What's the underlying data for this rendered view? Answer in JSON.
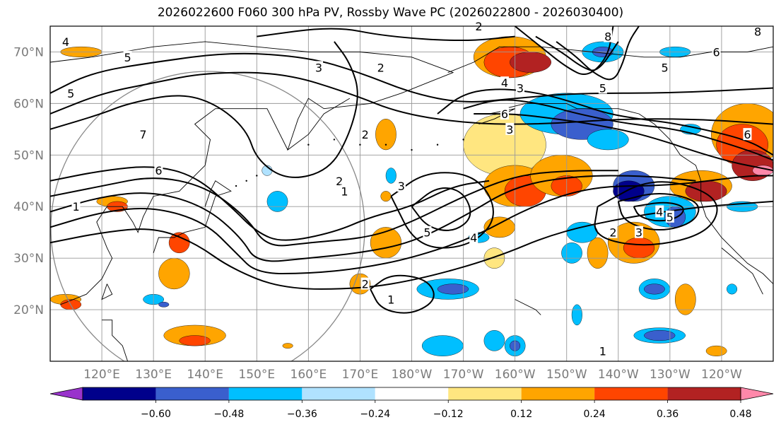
{
  "chart_data": {
    "type": "map-contour",
    "title": "2026022600 F060 300 hPa PV, Rossby Wave PC (2026022800 - 2026030400)",
    "lon_range": [
      110,
      250
    ],
    "lat_range": [
      10,
      75
    ],
    "lat_ticks": [
      {
        "value": 20,
        "label": "20°N"
      },
      {
        "value": 30,
        "label": "30°N"
      },
      {
        "value": 40,
        "label": "40°N"
      },
      {
        "value": 50,
        "label": "50°N"
      },
      {
        "value": 60,
        "label": "60°N"
      },
      {
        "value": 70,
        "label": "70°N"
      }
    ],
    "lon_ticks": [
      {
        "value": 120,
        "label": "120°E"
      },
      {
        "value": 130,
        "label": "130°E"
      },
      {
        "value": 140,
        "label": "140°E"
      },
      {
        "value": 150,
        "label": "150°E"
      },
      {
        "value": 160,
        "label": "160°E"
      },
      {
        "value": 170,
        "label": "170°E"
      },
      {
        "value": 180,
        "label": "180°W"
      },
      {
        "value": 190,
        "label": "170°W"
      },
      {
        "value": 200,
        "label": "160°W"
      },
      {
        "value": 210,
        "label": "150°W"
      },
      {
        "value": 220,
        "label": "140°W"
      },
      {
        "value": 230,
        "label": "130°W"
      },
      {
        "value": 240,
        "label": "120°W"
      }
    ],
    "colorbar": {
      "levels": [
        -0.6,
        -0.48,
        -0.36,
        -0.24,
        -0.12,
        0.12,
        0.24,
        0.36,
        0.48,
        0.6
      ],
      "labels": [
        "−0.60",
        "−0.48",
        "−0.36",
        "−0.24",
        "−0.12",
        "0.12",
        "0.24",
        "0.36",
        "0.48",
        "0.60"
      ],
      "colors": [
        "#9933cc",
        "#00008b",
        "#3a5fcd",
        "#00bfff",
        "#b0e2ff",
        "#ffffff",
        "#ffe680",
        "#ffa500",
        "#ff4500",
        "#b22222",
        "#ff88aa"
      ]
    },
    "pv_contour_labels": [
      {
        "text": "4",
        "lon": 113,
        "lat": 72
      },
      {
        "text": "5",
        "lon": 125,
        "lat": 69
      },
      {
        "text": "5",
        "lon": 114,
        "lat": 62
      },
      {
        "text": "7",
        "lon": 128,
        "lat": 54
      },
      {
        "text": "6",
        "lon": 131,
        "lat": 47
      },
      {
        "text": "1",
        "lon": 115,
        "lat": 40
      },
      {
        "text": "3",
        "lon": 162,
        "lat": 67
      },
      {
        "text": "2",
        "lon": 174,
        "lat": 67
      },
      {
        "text": "2",
        "lon": 171,
        "lat": 54
      },
      {
        "text": "2",
        "lon": 166,
        "lat": 45
      },
      {
        "text": "1",
        "lon": 167,
        "lat": 43
      },
      {
        "text": "3",
        "lon": 178,
        "lat": 44
      },
      {
        "text": "5",
        "lon": 183,
        "lat": 35
      },
      {
        "text": "4",
        "lon": 192,
        "lat": 34
      },
      {
        "text": "6",
        "lon": 198,
        "lat": 58
      },
      {
        "text": "3",
        "lon": 199,
        "lat": 55
      },
      {
        "text": "4",
        "lon": 198,
        "lat": 64
      },
      {
        "text": "3",
        "lon": 201,
        "lat": 63
      },
      {
        "text": "2",
        "lon": 193,
        "lat": 75
      },
      {
        "text": "8",
        "lon": 218,
        "lat": 73
      },
      {
        "text": "5",
        "lon": 229,
        "lat": 67
      },
      {
        "text": "5",
        "lon": 217,
        "lat": 63
      },
      {
        "text": "6",
        "lon": 239,
        "lat": 70
      },
      {
        "text": "8",
        "lon": 247,
        "lat": 74
      },
      {
        "text": "6",
        "lon": 245,
        "lat": 54
      },
      {
        "text": "4",
        "lon": 228,
        "lat": 39
      },
      {
        "text": "5",
        "lon": 230,
        "lat": 38
      },
      {
        "text": "3",
        "lon": 224,
        "lat": 35
      },
      {
        "text": "2",
        "lon": 219,
        "lat": 35
      },
      {
        "text": "2",
        "lon": 171,
        "lat": 25
      },
      {
        "text": "1",
        "lon": 176,
        "lat": 22
      },
      {
        "text": "1",
        "lon": 217,
        "lat": 12
      }
    ]
  }
}
